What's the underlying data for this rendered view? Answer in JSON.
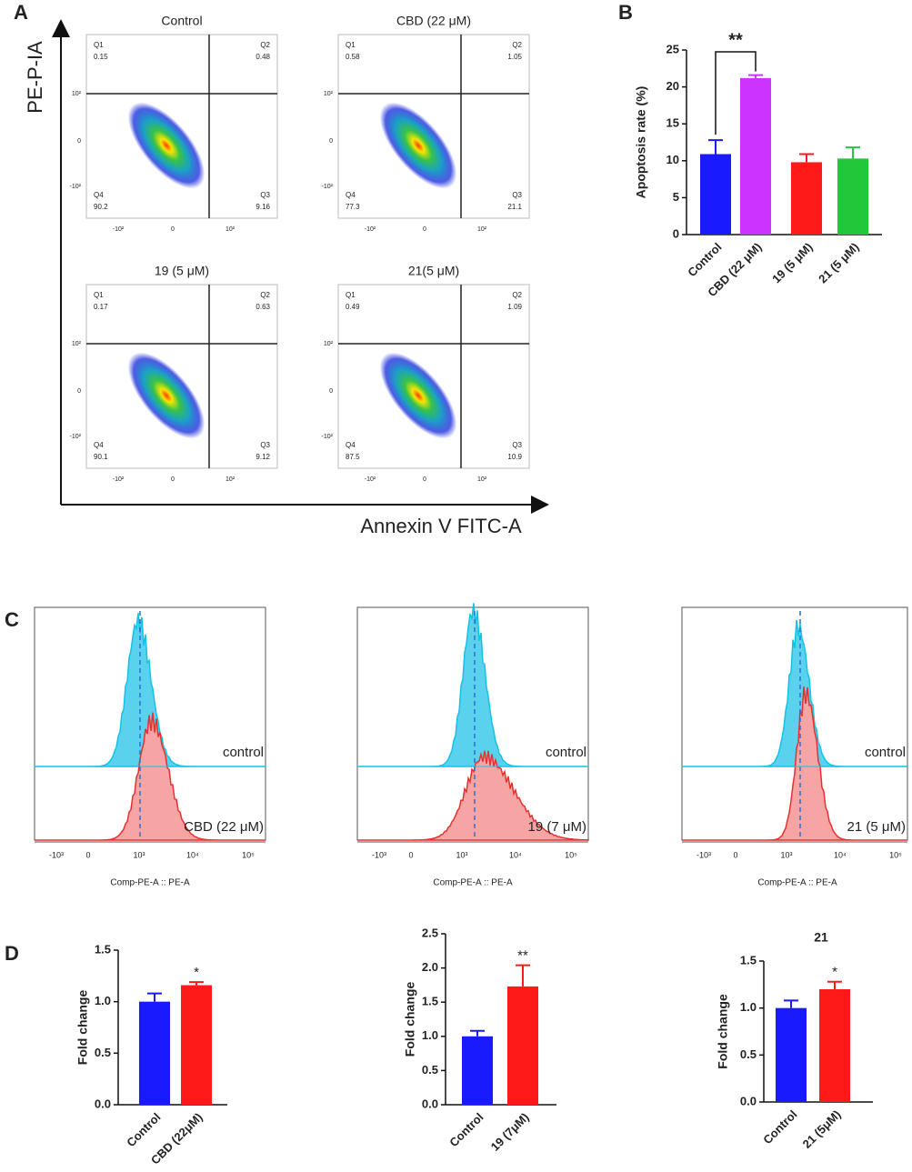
{
  "chart_data": [
    {
      "type": "bar",
      "ylabel": "Apoptosis rate (%)",
      "annotation": "**",
      "categories": [
        "Control",
        "CBD (22 μM)",
        "19 (5 μM)",
        "21 (5 μM)"
      ],
      "values": [
        10.9,
        21.2,
        9.8,
        10.3
      ],
      "errors": [
        1.9,
        0.4,
        1.1,
        1.5
      ],
      "colors": [
        "#1a1aff",
        "#cc33ff",
        "#ff1a1a",
        "#22c83a"
      ],
      "ylim": [
        0,
        25
      ],
      "yticks": [
        0,
        5,
        10,
        15,
        20,
        25
      ]
    },
    {
      "type": "bar",
      "ylabel": "Fold change",
      "annotation": "*",
      "categories": [
        "Control",
        "CBD (22μM)"
      ],
      "values": [
        1.0,
        1.16
      ],
      "errors": [
        0.08,
        0.03
      ],
      "colors": [
        "#1a1aff",
        "#ff1a1a"
      ],
      "ylim": [
        0,
        1.5
      ],
      "yticks": [
        {
          "value": 0,
          "label": "0.0"
        },
        0.5,
        {
          "value": 1,
          "label": "1.0"
        },
        1.5
      ]
    },
    {
      "type": "bar",
      "ylabel": "Fold change",
      "annotation": "**",
      "categories": [
        "Control",
        "19 (7μM)"
      ],
      "values": [
        1.0,
        1.73
      ],
      "errors": [
        0.08,
        0.31
      ],
      "colors": [
        "#1a1aff",
        "#ff1a1a"
      ],
      "ylim": [
        0,
        2.5
      ],
      "yticks": [
        {
          "value": 0,
          "label": "0.0"
        },
        0.5,
        {
          "value": 1,
          "label": "1.0"
        },
        1.5,
        {
          "value": 2,
          "label": "2.0"
        },
        2.5
      ]
    },
    {
      "type": "bar",
      "title": "21",
      "ylabel": "Fold change",
      "annotation": "*",
      "categories": [
        "Control",
        "21 (5μM)"
      ],
      "values": [
        1.0,
        1.2
      ],
      "errors": [
        0.08,
        0.08
      ],
      "colors": [
        "#1a1aff",
        "#ff1a1a"
      ],
      "ylim": [
        0,
        1.5
      ],
      "yticks": [
        {
          "value": 0,
          "label": "0.0"
        },
        0.5,
        {
          "value": 1,
          "label": "1.0"
        },
        1.5
      ]
    }
  ],
  "figure": {
    "panel_labels": [
      "A",
      "B",
      "C",
      "D"
    ],
    "flow": {
      "ylabel": "PE-P-IA",
      "xlabel": "Annexin V FITC-A",
      "yticks": [
        "10²",
        "0",
        "-10²"
      ],
      "xticks": [
        "-10²",
        "0",
        "10²"
      ],
      "plots": [
        {
          "title": "Control",
          "quadrants": [
            {
              "name": "Q1",
              "value": 0.15
            },
            {
              "name": "Q2",
              "value": 0.48
            },
            {
              "name": "Q3",
              "value": 9.16
            },
            {
              "name": "Q4",
              "value": 90.2
            }
          ]
        },
        {
          "title": "CBD (22 μM)",
          "quadrants": [
            {
              "name": "Q1",
              "value": 0.58
            },
            {
              "name": "Q2",
              "value": 1.05
            },
            {
              "name": "Q3",
              "value": 21.1
            },
            {
              "name": "Q4",
              "value": 77.3
            }
          ]
        },
        {
          "title": "19 (5 μM)",
          "quadrants": [
            {
              "name": "Q1",
              "value": 0.17
            },
            {
              "name": "Q2",
              "value": 0.63
            },
            {
              "name": "Q3",
              "value": 9.12
            },
            {
              "name": "Q4",
              "value": 90.1
            }
          ]
        },
        {
          "title": "21(5 μM)",
          "quadrants": [
            {
              "name": "Q1",
              "value": 0.49
            },
            {
              "name": "Q2",
              "value": 1.09
            },
            {
              "name": "Q3",
              "value": 10.9
            },
            {
              "name": "Q4",
              "value": 87.5
            }
          ]
        }
      ]
    },
    "histograms": {
      "xlabel": "Comp-PE-A :: PE-A",
      "ticks": [
        "-10³",
        "0",
        "10³",
        "10⁴",
        "10⁵"
      ],
      "plots": [
        {
          "reference": "control",
          "sample": "CBD (22 μM)"
        },
        {
          "reference": "control",
          "sample": "19 (7 μM)"
        },
        {
          "reference": "control",
          "sample": "21 (5 μM)"
        }
      ]
    }
  }
}
